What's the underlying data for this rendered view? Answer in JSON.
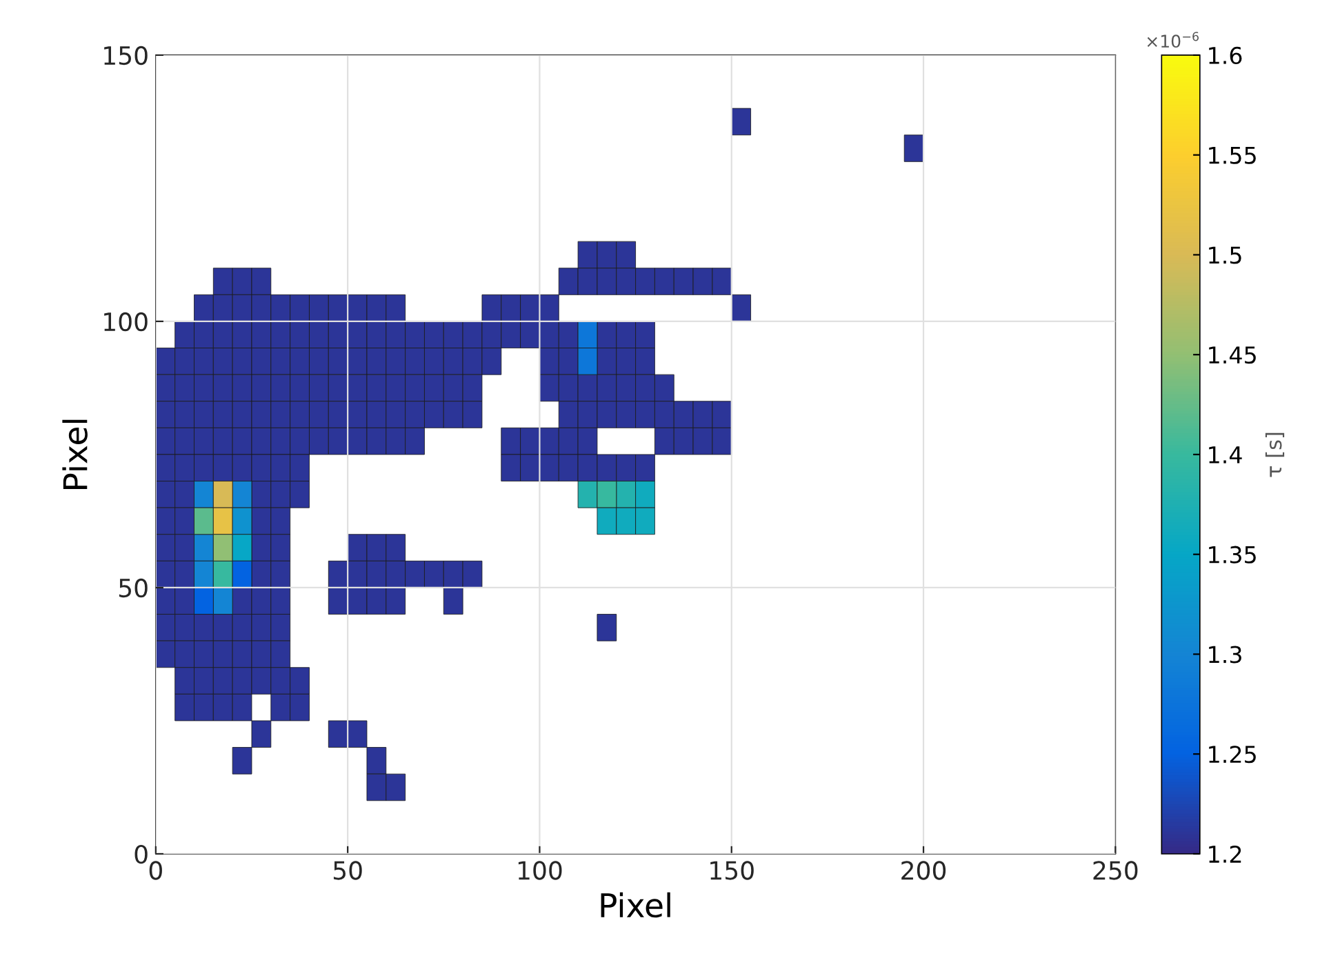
{
  "chart_data": {
    "type": "scatter",
    "xlabel": "Pixel",
    "ylabel": "Pixel",
    "clabel": "τ [s]",
    "annotations": [
      "×10$^{−6}$"
    ],
    "xlim": [
      0,
      250
    ],
    "ylim": [
      0,
      150
    ],
    "xticks": [
      0,
      50,
      100,
      150,
      200,
      250
    ],
    "yticks": [
      0,
      50,
      100,
      150
    ],
    "clim": [
      1.2,
      1.6
    ],
    "cticks": [
      1.2,
      1.25,
      1.3,
      1.35,
      1.4,
      1.45,
      1.5,
      1.55,
      1.6
    ],
    "grid": true,
    "marker": "square",
    "series": [
      {
        "x": [
          152.5
        ],
        "values": [
          137.5
        ],
        "cvalues": [
          1.21
        ]
      },
      {
        "x": [
          197.5
        ],
        "values": [
          132.5
        ],
        "cvalues": [
          1.21
        ]
      },
      {
        "x": [
          112.5,
          117.5,
          122.5
        ],
        "values": [
          112.5,
          112.5,
          112.5
        ],
        "cvalues": [
          1.21,
          1.21,
          1.21
        ]
      },
      {
        "x": [
          17.5,
          22.5,
          27.5,
          107.5,
          112.5,
          117.5,
          122.5,
          127.5,
          132.5,
          137.5,
          142.5,
          147.5
        ],
        "values": [
          107.5,
          107.5,
          107.5,
          107.5,
          107.5,
          107.5,
          107.5,
          107.5,
          107.5,
          107.5,
          107.5,
          107.5
        ],
        "cvalues": [
          1.21,
          1.21,
          1.21,
          1.21,
          1.21,
          1.21,
          1.21,
          1.21,
          1.21,
          1.21,
          1.21,
          1.21
        ]
      },
      {
        "x": [
          12.5,
          17.5,
          22.5,
          27.5,
          32.5,
          37.5,
          42.5,
          47.5,
          52.5,
          57.5,
          62.5,
          87.5,
          92.5,
          97.5,
          102.5,
          152.5
        ],
        "values": [
          102.5,
          102.5,
          102.5,
          102.5,
          102.5,
          102.5,
          102.5,
          102.5,
          102.5,
          102.5,
          102.5,
          102.5,
          102.5,
          102.5,
          102.5,
          102.5
        ],
        "cvalues": [
          1.21,
          1.21,
          1.21,
          1.21,
          1.21,
          1.21,
          1.21,
          1.21,
          1.21,
          1.21,
          1.21,
          1.21,
          1.21,
          1.21,
          1.21,
          1.21
        ]
      },
      {
        "x": [
          7.5,
          12.5,
          17.5,
          22.5,
          27.5,
          32.5,
          37.5,
          42.5,
          47.5,
          52.5,
          57.5,
          62.5,
          67.5,
          72.5,
          77.5,
          82.5,
          87.5,
          92.5,
          97.5,
          102.5,
          107.5,
          117.5,
          122.5,
          127.5
        ],
        "values": [
          97.5,
          97.5,
          97.5,
          97.5,
          97.5,
          97.5,
          97.5,
          97.5,
          97.5,
          97.5,
          97.5,
          97.5,
          97.5,
          97.5,
          97.5,
          97.5,
          97.5,
          97.5,
          97.5,
          97.5,
          97.5,
          97.5,
          97.5,
          97.5
        ],
        "cvalues": [
          1.21,
          1.21,
          1.21,
          1.21,
          1.21,
          1.21,
          1.21,
          1.21,
          1.21,
          1.21,
          1.21,
          1.21,
          1.21,
          1.21,
          1.21,
          1.21,
          1.21,
          1.21,
          1.21,
          1.21,
          1.21,
          1.21,
          1.21,
          1.21
        ]
      },
      {
        "x": [
          2.5,
          7.5,
          12.5,
          17.5,
          22.5,
          27.5,
          32.5,
          37.5,
          42.5,
          47.5,
          52.5,
          57.5,
          62.5,
          67.5,
          72.5,
          77.5,
          82.5,
          87.5,
          102.5,
          107.5,
          117.5,
          122.5,
          127.5
        ],
        "values": [
          92.5,
          92.5,
          92.5,
          92.5,
          92.5,
          92.5,
          92.5,
          92.5,
          92.5,
          92.5,
          92.5,
          92.5,
          92.5,
          92.5,
          92.5,
          92.5,
          92.5,
          92.5,
          92.5,
          92.5,
          92.5,
          92.5,
          92.5
        ],
        "cvalues": [
          1.21,
          1.21,
          1.21,
          1.21,
          1.21,
          1.21,
          1.21,
          1.21,
          1.21,
          1.21,
          1.21,
          1.21,
          1.21,
          1.21,
          1.21,
          1.21,
          1.21,
          1.21,
          1.21,
          1.21,
          1.21,
          1.21,
          1.21
        ]
      },
      {
        "x": [
          2.5,
          7.5,
          12.5,
          17.5,
          22.5,
          27.5,
          32.5,
          37.5,
          42.5,
          47.5,
          52.5,
          57.5,
          62.5,
          67.5,
          72.5,
          77.5,
          82.5,
          102.5,
          107.5,
          112.5,
          117.5,
          122.5,
          127.5,
          132.5
        ],
        "values": [
          87.5,
          87.5,
          87.5,
          87.5,
          87.5,
          87.5,
          87.5,
          87.5,
          87.5,
          87.5,
          87.5,
          87.5,
          87.5,
          87.5,
          87.5,
          87.5,
          87.5,
          87.5,
          87.5,
          87.5,
          87.5,
          87.5,
          87.5,
          87.5
        ],
        "cvalues": [
          1.21,
          1.21,
          1.21,
          1.21,
          1.21,
          1.21,
          1.21,
          1.21,
          1.21,
          1.21,
          1.21,
          1.21,
          1.21,
          1.21,
          1.21,
          1.21,
          1.21,
          1.21,
          1.21,
          1.21,
          1.21,
          1.21,
          1.21,
          1.21
        ]
      },
      {
        "x": [
          2.5,
          7.5,
          12.5,
          17.5,
          22.5,
          27.5,
          32.5,
          37.5,
          42.5,
          47.5,
          52.5,
          57.5,
          62.5,
          67.5,
          72.5,
          77.5,
          82.5,
          107.5,
          112.5,
          117.5,
          122.5,
          127.5,
          132.5,
          137.5,
          142.5,
          147.5
        ],
        "values": [
          82.5,
          82.5,
          82.5,
          82.5,
          82.5,
          82.5,
          82.5,
          82.5,
          82.5,
          82.5,
          82.5,
          82.5,
          82.5,
          82.5,
          82.5,
          82.5,
          82.5,
          82.5,
          82.5,
          82.5,
          82.5,
          82.5,
          82.5,
          82.5,
          82.5,
          82.5
        ],
        "cvalues": [
          1.21,
          1.21,
          1.21,
          1.21,
          1.21,
          1.21,
          1.21,
          1.21,
          1.21,
          1.21,
          1.21,
          1.21,
          1.21,
          1.21,
          1.21,
          1.21,
          1.21,
          1.21,
          1.21,
          1.21,
          1.21,
          1.21,
          1.21,
          1.21,
          1.21,
          1.21
        ]
      },
      {
        "x": [
          2.5,
          7.5,
          12.5,
          17.5,
          22.5,
          27.5,
          32.5,
          37.5,
          42.5,
          47.5,
          52.5,
          57.5,
          62.5,
          67.5,
          92.5,
          97.5,
          102.5,
          107.5,
          112.5,
          132.5,
          137.5,
          142.5,
          147.5
        ],
        "values": [
          77.5,
          77.5,
          77.5,
          77.5,
          77.5,
          77.5,
          77.5,
          77.5,
          77.5,
          77.5,
          77.5,
          77.5,
          77.5,
          77.5,
          77.5,
          77.5,
          77.5,
          77.5,
          77.5,
          77.5,
          77.5,
          77.5,
          77.5
        ],
        "cvalues": [
          1.21,
          1.21,
          1.21,
          1.21,
          1.21,
          1.21,
          1.21,
          1.21,
          1.21,
          1.21,
          1.21,
          1.21,
          1.21,
          1.21,
          1.21,
          1.21,
          1.21,
          1.21,
          1.21,
          1.21,
          1.21,
          1.21,
          1.21
        ]
      },
      {
        "x": [
          2.5,
          7.5,
          12.5,
          17.5,
          22.5,
          27.5,
          32.5,
          37.5,
          92.5,
          97.5,
          102.5,
          107.5,
          112.5,
          117.5,
          122.5,
          127.5
        ],
        "values": [
          72.5,
          72.5,
          72.5,
          72.5,
          72.5,
          72.5,
          72.5,
          72.5,
          72.5,
          72.5,
          72.5,
          72.5,
          72.5,
          72.5,
          72.5,
          72.5
        ],
        "cvalues": [
          1.21,
          1.21,
          1.21,
          1.21,
          1.21,
          1.21,
          1.21,
          1.21,
          1.21,
          1.21,
          1.21,
          1.21,
          1.21,
          1.21,
          1.21,
          1.21
        ]
      },
      {
        "x": [
          2.5,
          7.5,
          27.5,
          32.5,
          37.5
        ],
        "values": [
          67.5,
          67.5,
          67.5,
          67.5,
          67.5
        ],
        "cvalues": [
          1.21,
          1.21,
          1.21,
          1.21,
          1.21
        ]
      },
      {
        "x": [
          2.5,
          7.5,
          27.5,
          32.5
        ],
        "values": [
          62.5,
          62.5,
          62.5,
          62.5
        ],
        "cvalues": [
          1.21,
          1.21,
          1.21,
          1.21
        ]
      },
      {
        "x": [
          2.5,
          7.5,
          27.5,
          32.5,
          52.5,
          57.5,
          62.5
        ],
        "values": [
          57.5,
          57.5,
          57.5,
          57.5,
          57.5,
          57.5,
          57.5
        ],
        "cvalues": [
          1.21,
          1.21,
          1.21,
          1.21,
          1.21,
          1.21,
          1.21
        ]
      },
      {
        "x": [
          2.5,
          7.5,
          27.5,
          32.5,
          47.5,
          52.5,
          57.5,
          62.5,
          67.5,
          72.5,
          77.5,
          82.5
        ],
        "values": [
          52.5,
          52.5,
          52.5,
          52.5,
          52.5,
          52.5,
          52.5,
          52.5,
          52.5,
          52.5,
          52.5,
          52.5
        ],
        "cvalues": [
          1.21,
          1.21,
          1.21,
          1.21,
          1.21,
          1.21,
          1.21,
          1.21,
          1.21,
          1.21,
          1.21,
          1.21
        ]
      },
      {
        "x": [
          2.5,
          7.5,
          22.5,
          27.5,
          32.5,
          47.5,
          52.5,
          57.5,
          62.5,
          77.5
        ],
        "values": [
          47.5,
          47.5,
          47.5,
          47.5,
          47.5,
          47.5,
          47.5,
          47.5,
          47.5,
          47.5
        ],
        "cvalues": [
          1.21,
          1.21,
          1.21,
          1.21,
          1.21,
          1.21,
          1.21,
          1.21,
          1.21,
          1.21
        ]
      },
      {
        "x": [
          2.5,
          7.5,
          12.5,
          17.5,
          22.5,
          27.5,
          32.5,
          117.5
        ],
        "values": [
          42.5,
          42.5,
          42.5,
          42.5,
          42.5,
          42.5,
          42.5,
          42.5
        ],
        "cvalues": [
          1.21,
          1.21,
          1.21,
          1.21,
          1.21,
          1.21,
          1.21,
          1.21
        ]
      },
      {
        "x": [
          2.5,
          7.5,
          12.5,
          17.5,
          22.5,
          27.5,
          32.5
        ],
        "values": [
          37.5,
          37.5,
          37.5,
          37.5,
          37.5,
          37.5,
          37.5
        ],
        "cvalues": [
          1.21,
          1.21,
          1.21,
          1.21,
          1.21,
          1.21,
          1.21
        ]
      },
      {
        "x": [
          7.5,
          12.5,
          17.5,
          22.5,
          27.5,
          32.5,
          37.5
        ],
        "values": [
          32.5,
          32.5,
          32.5,
          32.5,
          32.5,
          32.5,
          32.5
        ],
        "cvalues": [
          1.21,
          1.21,
          1.21,
          1.21,
          1.21,
          1.21,
          1.21
        ]
      },
      {
        "x": [
          7.5,
          12.5,
          17.5,
          22.5,
          32.5,
          37.5
        ],
        "values": [
          27.5,
          27.5,
          27.5,
          27.5,
          27.5,
          27.5
        ],
        "cvalues": [
          1.21,
          1.21,
          1.21,
          1.21,
          1.21,
          1.21
        ]
      },
      {
        "x": [
          27.5,
          47.5,
          52.5
        ],
        "values": [
          22.5,
          22.5,
          22.5
        ],
        "cvalues": [
          1.21,
          1.21,
          1.21
        ]
      },
      {
        "x": [
          22.5,
          57.5
        ],
        "values": [
          17.5,
          17.5
        ],
        "cvalues": [
          1.21,
          1.21
        ]
      },
      {
        "x": [
          57.5,
          62.5
        ],
        "values": [
          12.5,
          12.5
        ],
        "cvalues": [
          1.21,
          1.21
        ]
      },
      {
        "x": [
          112.5,
          112.5
        ],
        "values": [
          97.5,
          92.5
        ],
        "cvalues": [
          1.28,
          1.28
        ]
      },
      {
        "x": [
          12.5,
          22.5,
          12.5,
          12.5,
          17.5
        ],
        "values": [
          67.5,
          67.5,
          57.5,
          52.5,
          47.5
        ],
        "cvalues": [
          1.3,
          1.3,
          1.3,
          1.3,
          1.3
        ]
      },
      {
        "x": [
          17.5
        ],
        "values": [
          67.5
        ],
        "cvalues": [
          1.5
        ]
      },
      {
        "x": [
          112.5,
          122.5
        ],
        "values": [
          67.5,
          67.5
        ],
        "cvalues": [
          1.38,
          1.38
        ]
      },
      {
        "x": [
          117.5,
          17.5
        ],
        "values": [
          67.5,
          52.5
        ],
        "cvalues": [
          1.4,
          1.4
        ]
      },
      {
        "x": [
          127.5,
          117.5,
          122.5,
          127.5
        ],
        "values": [
          67.5,
          62.5,
          62.5,
          62.5
        ],
        "cvalues": [
          1.36,
          1.36,
          1.36,
          1.36
        ]
      },
      {
        "x": [
          12.5
        ],
        "values": [
          62.5
        ],
        "cvalues": [
          1.42
        ]
      },
      {
        "x": [
          17.5
        ],
        "values": [
          62.5
        ],
        "cvalues": [
          1.52
        ]
      },
      {
        "x": [
          22.5
        ],
        "values": [
          62.5
        ],
        "cvalues": [
          1.32
        ]
      },
      {
        "x": [
          17.5
        ],
        "values": [
          57.5
        ],
        "cvalues": [
          1.45
        ]
      },
      {
        "x": [
          22.5
        ],
        "values": [
          57.5
        ],
        "cvalues": [
          1.35
        ]
      },
      {
        "x": [
          22.5,
          12.5
        ],
        "values": [
          52.5,
          47.5
        ],
        "cvalues": [
          1.25,
          1.25
        ]
      }
    ]
  }
}
